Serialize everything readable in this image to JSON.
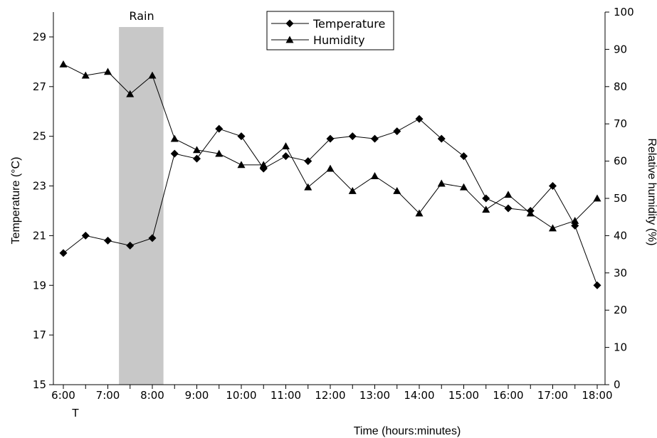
{
  "chart_data": {
    "type": "line",
    "xlabel": "Time (hours:minutes)",
    "x_ticks": [
      "6:00",
      "7:00",
      "8:00",
      "9:00",
      "10:00",
      "11:00",
      "12:00",
      "13:00",
      "14:00",
      "15:00",
      "16:00",
      "17:00",
      "18:00"
    ],
    "x_marker_label": "T",
    "x_range": [
      "6:00",
      "18:00"
    ],
    "y_left": {
      "label": "Temperature (°C)",
      "range": [
        15,
        30
      ],
      "ticks": [
        15,
        17,
        19,
        21,
        23,
        25,
        27,
        29
      ]
    },
    "y_right": {
      "label": "Relative humidity (%)",
      "range": [
        0,
        100
      ],
      "ticks": [
        0,
        10,
        20,
        30,
        40,
        50,
        60,
        70,
        80,
        90,
        100
      ]
    },
    "x": [
      "6:00",
      "6:30",
      "7:00",
      "7:30",
      "8:00",
      "8:30",
      "9:00",
      "9:30",
      "10:00",
      "10:30",
      "11:00",
      "11:30",
      "12:00",
      "12:30",
      "13:00",
      "13:30",
      "14:00",
      "14:30",
      "15:00",
      "15:30",
      "16:00",
      "16:30",
      "17:00",
      "17:30",
      "18:00"
    ],
    "series": [
      {
        "name": "Temperature",
        "axis": "left",
        "marker": "diamond",
        "values": [
          20.3,
          21.0,
          20.8,
          20.6,
          20.9,
          24.3,
          24.1,
          25.3,
          25.0,
          23.7,
          24.2,
          24.0,
          24.9,
          25.0,
          24.9,
          25.2,
          25.7,
          24.9,
          24.2,
          22.5,
          22.1,
          22.0,
          23.0,
          21.4,
          19.0
        ]
      },
      {
        "name": "Humidity",
        "axis": "right",
        "marker": "triangle",
        "values": [
          86,
          83,
          84,
          78,
          83,
          66,
          63,
          62,
          59,
          59,
          64,
          53,
          58,
          52,
          56,
          52,
          46,
          54,
          53,
          47,
          51,
          46,
          42,
          44,
          50
        ]
      }
    ],
    "shaded_region": {
      "label": "Rain",
      "x_start": "7:15",
      "x_end": "8:15"
    },
    "legend_position": "top-center",
    "grid": false
  },
  "colors": {
    "line": "#000000",
    "shade": "#c8c8c8",
    "background": "#ffffff"
  }
}
